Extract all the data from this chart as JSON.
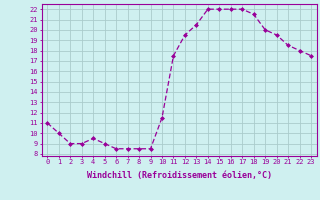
{
  "x": [
    0,
    1,
    2,
    3,
    4,
    5,
    6,
    7,
    8,
    9,
    10,
    11,
    12,
    13,
    14,
    15,
    16,
    17,
    18,
    19,
    20,
    21,
    22,
    23
  ],
  "y": [
    11.0,
    10.0,
    9.0,
    9.0,
    9.5,
    9.0,
    8.5,
    8.5,
    8.5,
    8.5,
    11.5,
    17.5,
    19.5,
    20.5,
    22.0,
    22.0,
    22.0,
    22.0,
    21.5,
    20.0,
    19.5,
    18.5,
    18.0,
    17.5
  ],
  "line_color": "#990099",
  "marker": "D",
  "marker_size": 2.0,
  "bg_color": "#cff0f0",
  "grid_color": "#aacccc",
  "xlabel": "Windchill (Refroidissement éolien,°C)",
  "ylabel_ticks": [
    8,
    9,
    10,
    11,
    12,
    13,
    14,
    15,
    16,
    17,
    18,
    19,
    20,
    21,
    22
  ],
  "xlim": [
    -0.5,
    23.5
  ],
  "ylim": [
    7.8,
    22.5
  ],
  "tick_color": "#990099",
  "label_color": "#990099",
  "spine_color": "#990099",
  "tick_fontsize": 5.0,
  "xlabel_fontsize": 6.0,
  "linewidth": 0.9
}
